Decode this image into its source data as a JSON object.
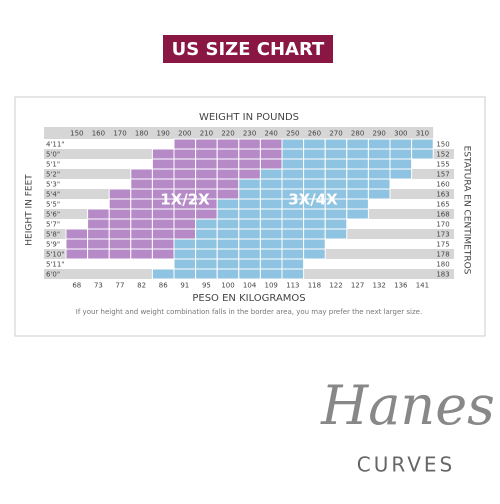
{
  "title": "US SIZE CHART",
  "weight_label": "WEIGHT IN POUNDS",
  "kg_label": "PESO EN KILOGRAMOS",
  "height_label": "HEIGHT IN FEET",
  "cm_label": "ESTATURA EN CENTIMETROS",
  "weights": [
    "150",
    "160",
    "170",
    "180",
    "190",
    "200",
    "210",
    "220",
    "230",
    "240",
    "250",
    "260",
    "270",
    "280",
    "290",
    "300",
    "310"
  ],
  "kilograms": [
    "68",
    "73",
    "77",
    "82",
    "86",
    "91",
    "95",
    "100",
    "104",
    "109",
    "113",
    "118",
    "122",
    "127",
    "132",
    "136",
    "141"
  ],
  "heights": [
    "4'11\"",
    "5'0\"",
    "5'1\"",
    "5'2\"",
    "5'3\"",
    "5'4\"",
    "5'5\"",
    "5'6\"",
    "5'7\"",
    "5'8\"",
    "5'9\"",
    "5'10\"",
    "5'11\"",
    "6'0\""
  ],
  "centimeters": [
    "150",
    "152",
    "155",
    "157",
    "160",
    "163",
    "165",
    "168",
    "170",
    "173",
    "175",
    "178",
    "180",
    "183"
  ],
  "sizes": [
    "1X/2X",
    "3X/4X"
  ],
  "note": "If your height and weight combination falls in the border area, you may prefer the next larger size.",
  "brand": "Hanes",
  "line": "CURVES"
}
